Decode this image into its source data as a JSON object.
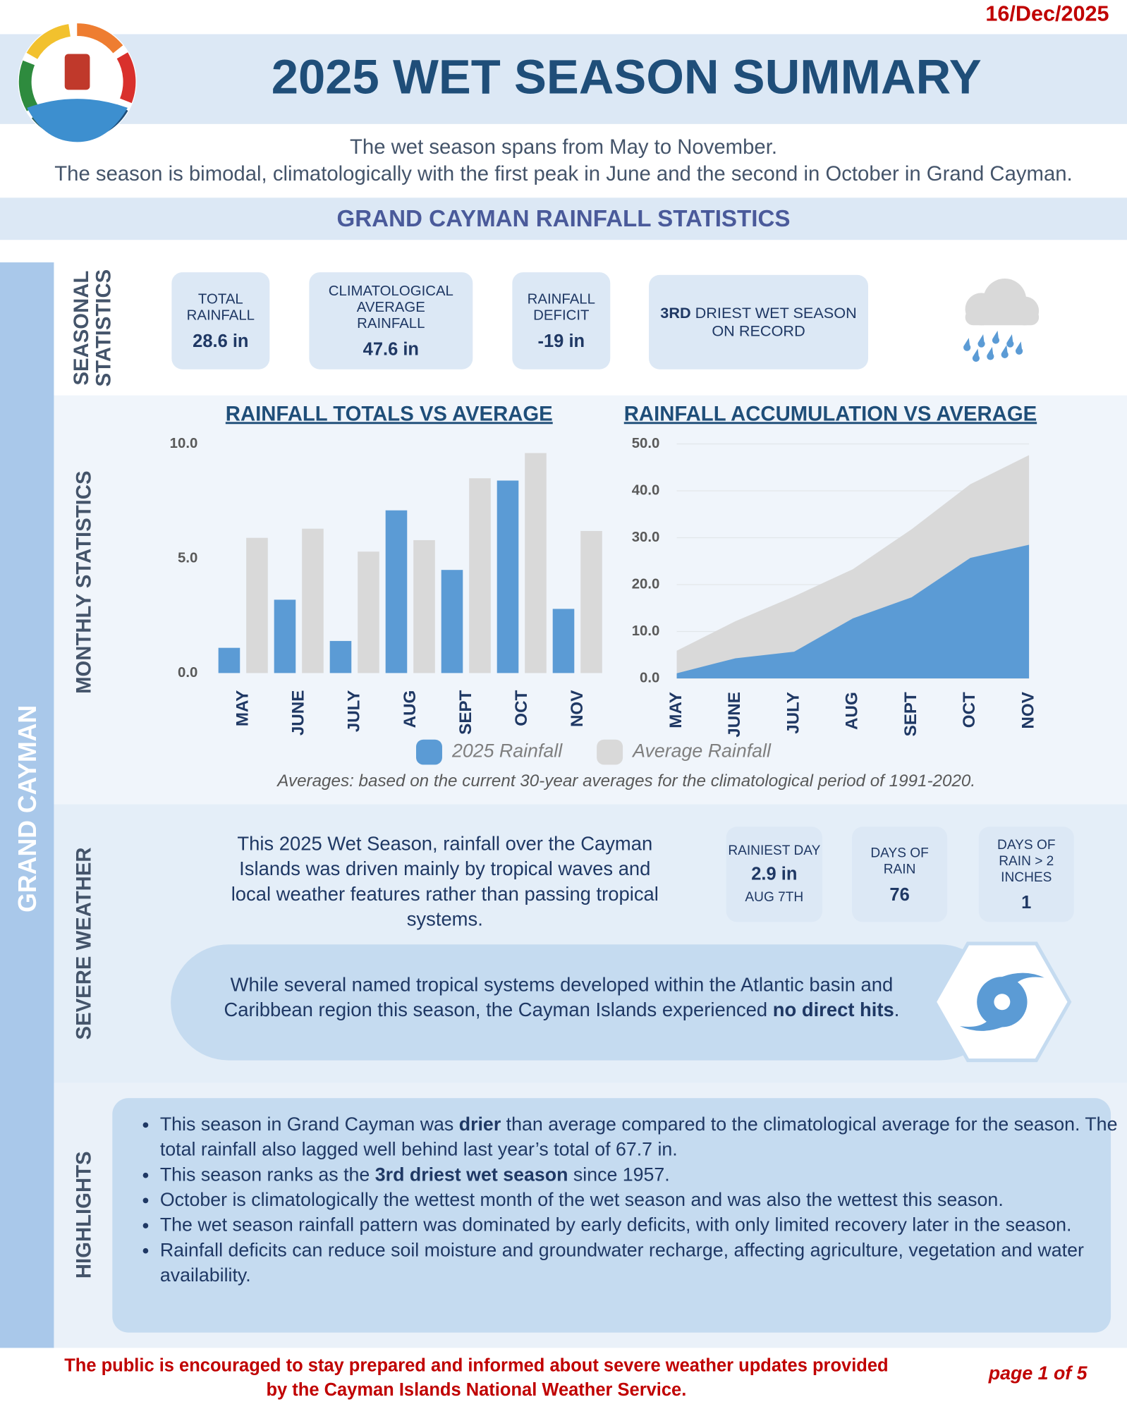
{
  "date": "16/Dec/2025",
  "title": "2025 WET SEASON SUMMARY",
  "intro": [
    "The wet season spans from May to November.",
    "The season is bimodal, climatologically with the first peak in June and the second in October in Grand Cayman."
  ],
  "section_title": "GRAND CAYMAN RAINFALL STATISTICS",
  "region": "GRAND CAYMAN",
  "seasonal": {
    "label": "SEASONAL STATISTICS",
    "stats": [
      {
        "label": "TOTAL RAINFALL",
        "value": "28.6 in"
      },
      {
        "label": "CLIMATOLOGICAL AVERAGE RAINFALL",
        "value": "47.6 in"
      },
      {
        "label": "RAINFALL DEFICIT",
        "value": "-19 in"
      }
    ],
    "rank": [
      "3RD",
      " DRIEST WET SEASON ON RECORD"
    ]
  },
  "monthly": {
    "label": "MONTHLY STATISTICS",
    "note": "Averages: based on the current 30-year averages for the climatological period of 1991-2020."
  },
  "chart_data": [
    {
      "type": "bar",
      "title": "RAINFALL TOTALS VS AVERAGE",
      "categories": [
        "MAY",
        "JUNE",
        "JULY",
        "AUG",
        "SEPT",
        "OCT",
        "NOV"
      ],
      "series": [
        {
          "name": "2025 Rainfall",
          "color": "#5b9bd5",
          "values": [
            1.1,
            3.2,
            1.4,
            7.1,
            4.5,
            8.4,
            2.8
          ]
        },
        {
          "name": "Average Rainfall",
          "color": "#d9d9d9",
          "values": [
            5.9,
            6.3,
            5.3,
            5.8,
            8.5,
            9.6,
            6.2
          ]
        }
      ],
      "ylim": [
        0,
        10
      ],
      "yticks": [
        {
          "value": 0,
          "label": "0.0"
        },
        {
          "value": 5,
          "label": "5.0"
        },
        {
          "value": 10,
          "label": "10.0"
        }
      ]
    },
    {
      "type": "area",
      "title": "RAINFALL ACCUMULATION VS AVERAGE",
      "categories": [
        "MAY",
        "JUNE",
        "JULY",
        "AUG",
        "SEPT",
        "OCT",
        "NOV"
      ],
      "series": [
        {
          "color": "#d9d9d9",
          "values": [
            5.9,
            12.2,
            17.5,
            23.3,
            31.8,
            41.4,
            47.6
          ]
        },
        {
          "color": "#5b9bd5",
          "values": [
            1.1,
            4.3,
            5.7,
            12.8,
            17.3,
            25.7,
            28.5
          ]
        }
      ],
      "ylim": [
        0,
        50
      ],
      "yticks": [
        {
          "value": 0,
          "label": "0.0"
        },
        {
          "value": 10,
          "label": "10.0"
        },
        {
          "value": 20,
          "label": "20.0"
        },
        {
          "value": 30,
          "label": "30.0"
        },
        {
          "value": 40,
          "label": "40.0"
        },
        {
          "value": 50,
          "label": "50.0"
        }
      ],
      "grid": true
    }
  ],
  "severe": {
    "label": "SEVERE WEATHER",
    "text": "This 2025 Wet Season, rainfall over the Cayman Islands was driven mainly by tropical waves and local weather features rather than passing tropical systems.",
    "stats": [
      {
        "label": "RAINIEST DAY",
        "value": "2.9 in",
        "note": "AUG 7TH"
      },
      {
        "label": "DAYS OF RAIN",
        "value": "76"
      },
      {
        "label": "DAYS OF RAIN > 2 INCHES",
        "value": "1"
      }
    ],
    "callout": [
      "While several named tropical systems developed within the Atlantic basin and Caribbean region this season, the Cayman Islands experienced ",
      "no direct hits",
      "."
    ]
  },
  "highlights": {
    "label": "HIGHLIGHTS",
    "items": [
      [
        "This season in Grand Cayman was ",
        "drier",
        " than average compared to the climatological average for the season. The total rainfall also lagged well behind last year’s total of 67.7 in."
      ],
      [
        "This season ranks as the ",
        "3rd driest wet season",
        " since 1957."
      ],
      [
        "October is climatologically the wettest month of the wet season and was also the wettest this season."
      ],
      [
        "The wet season rainfall pattern was dominated by early deficits, with only limited recovery later in the season."
      ],
      [
        "Rainfall deficits can reduce soil moisture and groundwater recharge, affecting agriculture, vegetation and water availability."
      ]
    ]
  },
  "footer": {
    "message": "The public is encouraged to stay prepared and informed about severe weather updates provided by the Cayman Islands National Weather Service.",
    "page": "page 1 of 5"
  }
}
